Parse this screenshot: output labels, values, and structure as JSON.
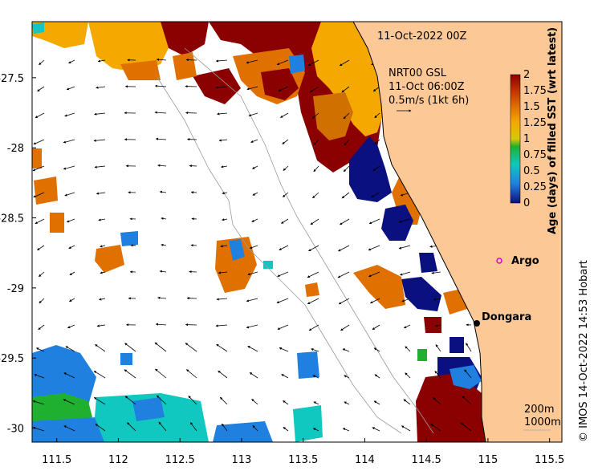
{
  "title": "11-Oct-2022 00Z",
  "model_info": {
    "line1": "NRT00 GSL",
    "line2": "11-Oct 06:00Z",
    "line3": "0.5m/s (1kt 6h)"
  },
  "axes": {
    "x_ticks": [
      "111.5",
      "112",
      "112.5",
      "113",
      "113.5",
      "114",
      "114.5",
      "115",
      "115.5"
    ],
    "y_ticks": [
      "-27.5",
      "-28",
      "-28.5",
      "-29",
      "-29.5",
      "-30"
    ],
    "x_values": [
      111.5,
      112,
      112.5,
      113,
      113.5,
      114,
      114.5,
      115,
      115.5
    ],
    "y_values": [
      -27.5,
      -28,
      -28.5,
      -29,
      -29.5,
      -30
    ],
    "lon_range": [
      111.3,
      115.6
    ],
    "lat_range": [
      -30.1,
      -27.1
    ]
  },
  "colorbar": {
    "title": "Age (days) of filled SST (wrt latest)",
    "tick_labels": [
      "2",
      "1.75",
      "1.5",
      "1.25",
      "1",
      "0.75",
      "0.5",
      "0.25",
      "0"
    ],
    "colors": [
      "#8b0000",
      "#c03000",
      "#e07000",
      "#f5a800",
      "#d8c800",
      "#20b030",
      "#10c8c0",
      "#2080e0",
      "#0a1080"
    ]
  },
  "places": [
    {
      "name": "Argo",
      "lon": 115.0,
      "lat": -28.84,
      "marker": "circle-magenta"
    },
    {
      "name": "Dongara",
      "lon": 114.93,
      "lat": -29.25,
      "marker": "dot-black"
    }
  ],
  "bathymetry_legend": {
    "line1": "200m",
    "line2": "1000m"
  },
  "credit": "© IMOS 14-Oct-2022 14:53 Hobart",
  "colors": {
    "land": "#fcc896",
    "ocean": "#ffffff",
    "vector": "#000000",
    "argo_marker": "#e000e0"
  }
}
